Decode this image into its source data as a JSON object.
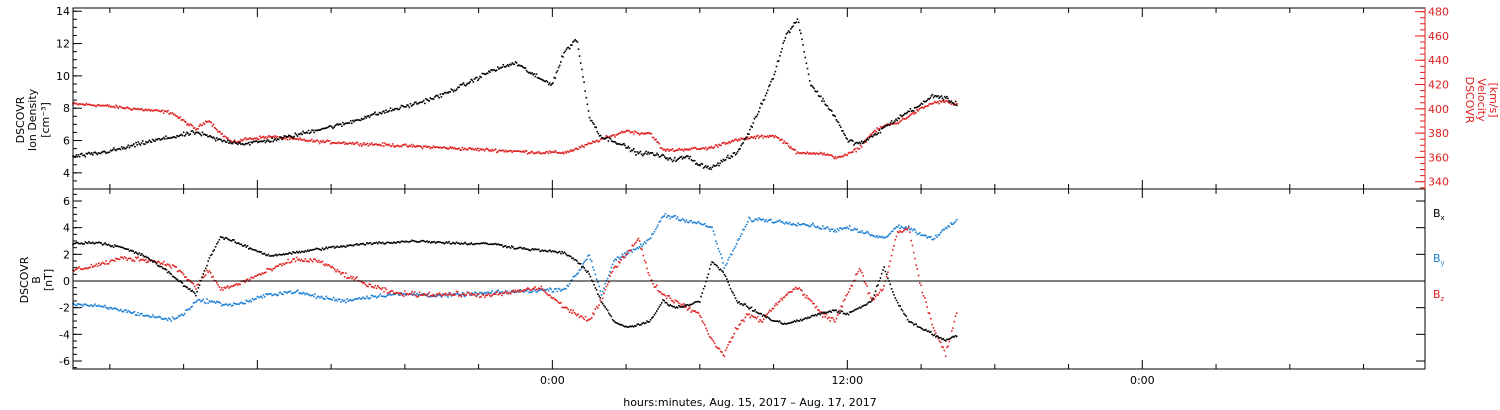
{
  "chart_data": [
    {
      "type": "scatter",
      "panel": "top",
      "ylabel_left": [
        "DSCOVR",
        "Ion Density",
        "[cm⁻³]"
      ],
      "ylabel_right": [
        "DSCOVR",
        "Velocity",
        "[km/s]"
      ],
      "ylim_left": [
        3,
        14.2
      ],
      "ylim_right": [
        334,
        483
      ],
      "left_ticks": [
        "4",
        "6",
        "8",
        "10",
        "12",
        "14"
      ],
      "right_ticks": [
        "340",
        "360",
        "380",
        "400",
        "420",
        "440",
        "460",
        "480"
      ],
      "x_hours_range": [
        -19.5,
        35.5
      ],
      "data_end_hour": 16.5,
      "series": [
        {
          "color": "#000000",
          "axis": "left",
          "x": [
            -19.5,
            -18.5,
            -17.5,
            -16.5,
            -15.5,
            -14.5,
            -13.5,
            -12.5,
            -11.5,
            -10.5,
            -9.5,
            -8.5,
            -7.5,
            -6.5,
            -5.5,
            -4.5,
            -3.5,
            -2.5,
            -1.5,
            -0.5,
            0,
            0.5,
            1,
            1.5,
            2,
            2.5,
            3,
            3.5,
            4,
            4.5,
            5,
            5.5,
            6,
            6.5,
            7,
            7.5,
            8,
            8.5,
            9,
            9.5,
            10,
            10.5,
            11,
            11.5,
            12,
            12.5,
            13,
            13.5,
            14,
            14.5,
            15,
            15.5,
            16,
            16.5
          ],
          "y": [
            5.0,
            5.2,
            5.5,
            5.9,
            6.2,
            6.5,
            6.0,
            5.8,
            6.0,
            6.3,
            6.7,
            7.0,
            7.5,
            7.9,
            8.3,
            8.8,
            9.5,
            10.3,
            10.8,
            9.8,
            9.5,
            11.5,
            12.3,
            7.5,
            6.2,
            6.0,
            5.6,
            5.2,
            5.2,
            5.0,
            4.8,
            5.0,
            4.5,
            4.3,
            4.8,
            5.2,
            6.5,
            8.2,
            10.0,
            12.5,
            13.5,
            9.5,
            8.5,
            7.5,
            6.0,
            5.8,
            6.2,
            6.8,
            7.3,
            7.8,
            8.2,
            8.8,
            8.6,
            8.2
          ]
        },
        {
          "color": "#e02020",
          "axis": "right",
          "x": [
            -19.5,
            -18.5,
            -17.5,
            -16.5,
            -15.5,
            -15,
            -14.5,
            -14,
            -13.5,
            -13,
            -12.5,
            -11.5,
            -10.5,
            -9.5,
            -8.5,
            -7.5,
            -6.5,
            -5.5,
            -4.5,
            -3.5,
            -2.5,
            -1.5,
            -0.5,
            0.5,
            1,
            1.5,
            2,
            2.5,
            3,
            3.5,
            4,
            4.5,
            5,
            5.5,
            6,
            6.5,
            7,
            7.5,
            8,
            8.5,
            9,
            9.5,
            10,
            10.5,
            11,
            11.5,
            12,
            12.5,
            13,
            13.5,
            14,
            14.5,
            15,
            15.5,
            16,
            16.5
          ],
          "y": [
            404,
            403,
            401,
            399,
            397,
            390,
            383,
            391,
            380,
            372,
            375,
            377,
            375,
            373,
            372,
            371,
            370,
            369,
            368,
            367,
            366,
            365,
            364,
            364,
            367,
            371,
            375,
            378,
            382,
            380,
            380,
            366,
            366,
            367,
            367,
            368,
            372,
            374,
            376,
            377,
            378,
            372,
            363,
            364,
            363,
            360,
            362,
            368,
            380,
            386,
            388,
            394,
            400,
            405,
            406,
            403
          ]
        }
      ]
    },
    {
      "type": "scatter",
      "panel": "bottom",
      "ylabel_left": [
        "DSCOVR",
        "B",
        "[nT]"
      ],
      "ylim": [
        -6.6,
        6.9
      ],
      "ticks": [
        "-6",
        "-4",
        "-2",
        "0",
        "2",
        "4",
        "6"
      ],
      "zero_line": true,
      "x_hours_range": [
        -19.5,
        35.5
      ],
      "data_end_hour": 16.5,
      "series": [
        {
          "name": "Bx",
          "color": "#000000",
          "x": [
            -19.5,
            -18.5,
            -17.5,
            -16.5,
            -15.5,
            -15,
            -14.5,
            -14,
            -13.5,
            -13,
            -12.5,
            -11.5,
            -10.5,
            -9.5,
            -8.5,
            -7.5,
            -6.5,
            -5.5,
            -4.5,
            -3.5,
            -2.5,
            -1.5,
            -0.5,
            0.5,
            1,
            1.5,
            2,
            2.5,
            3,
            3.5,
            4,
            4.5,
            5,
            5.5,
            6,
            6.5,
            7,
            7.5,
            8,
            8.5,
            9,
            9.5,
            10,
            10.5,
            11,
            11.5,
            12,
            12.5,
            13,
            13.5,
            14,
            14.5,
            15,
            15.5,
            16,
            16.5
          ],
          "y": [
            2.8,
            2.9,
            2.5,
            1.8,
            0.5,
            -0.3,
            -1.0,
            1.5,
            3.3,
            3.0,
            2.6,
            1.9,
            2.1,
            2.4,
            2.6,
            2.8,
            2.9,
            3.0,
            2.9,
            2.8,
            2.8,
            2.5,
            2.3,
            2.1,
            1.5,
            0.5,
            -1.5,
            -3.0,
            -3.5,
            -3.3,
            -3.0,
            -1.5,
            -2.0,
            -1.8,
            -1.5,
            1.5,
            0.5,
            -1.5,
            -2.0,
            -2.5,
            -3.0,
            -3.2,
            -3.0,
            -2.7,
            -2.4,
            -2.2,
            -2.5,
            -2.0,
            -1.5,
            1.0,
            -1.5,
            -3.0,
            -3.5,
            -4.0,
            -4.5,
            -4.0
          ]
        },
        {
          "name": "By",
          "color": "#1a7fd4",
          "x": [
            -19.5,
            -18.5,
            -17.5,
            -16.5,
            -15.5,
            -15,
            -14.5,
            -14,
            -13.5,
            -13,
            -12.5,
            -11.5,
            -10.5,
            -9.5,
            -8.5,
            -7.5,
            -6.5,
            -5.5,
            -4.5,
            -3.5,
            -2.5,
            -1.5,
            -0.5,
            0.5,
            1,
            1.5,
            2,
            2.5,
            3,
            3.5,
            4,
            4.5,
            5,
            5.5,
            6,
            6.5,
            7,
            7.5,
            8,
            8.5,
            9,
            9.5,
            10,
            10.5,
            11,
            11.5,
            12,
            12.5,
            13,
            13.5,
            14,
            14.5,
            15,
            15.5,
            16,
            16.5
          ],
          "y": [
            -1.7,
            -1.9,
            -2.2,
            -2.6,
            -2.9,
            -2.5,
            -1.5,
            -1.5,
            -1.7,
            -1.8,
            -1.6,
            -1.0,
            -0.8,
            -1.2,
            -1.5,
            -1.2,
            -1.0,
            -1.0,
            -1.1,
            -1.0,
            -0.9,
            -0.8,
            -0.7,
            -0.6,
            0.5,
            2.0,
            -1.0,
            1.5,
            2.0,
            2.5,
            3.2,
            4.9,
            4.8,
            4.5,
            4.3,
            4.0,
            1.0,
            2.8,
            4.6,
            4.6,
            4.5,
            4.4,
            4.3,
            4.2,
            4.0,
            3.8,
            4.0,
            3.7,
            3.5,
            3.2,
            4.1,
            4.0,
            3.5,
            3.2,
            3.9,
            4.6
          ]
        },
        {
          "name": "Bz",
          "color": "#e02020",
          "x": [
            -19.5,
            -18.5,
            -17.5,
            -16.5,
            -15.5,
            -15,
            -14.5,
            -14,
            -13.5,
            -13,
            -12.5,
            -11.5,
            -10.5,
            -9.5,
            -8.5,
            -7.5,
            -6.5,
            -5.5,
            -4.5,
            -3.5,
            -2.5,
            -1.5,
            -0.5,
            0.5,
            1,
            1.5,
            2,
            2.5,
            3,
            3.5,
            4,
            4.5,
            5,
            5.5,
            6,
            6.5,
            7,
            7.5,
            8,
            8.5,
            9,
            9.5,
            10,
            10.5,
            11,
            11.5,
            12,
            12.5,
            13,
            13.5,
            14,
            14.5,
            15,
            15.5,
            16,
            16.5
          ],
          "y": [
            0.8,
            1.2,
            1.7,
            1.6,
            1.2,
            0.5,
            -0.5,
            0.8,
            -0.6,
            -0.4,
            0.0,
            0.8,
            1.6,
            1.5,
            0.5,
            -0.3,
            -0.9,
            -1.0,
            -1.0,
            -1.0,
            -1.1,
            -0.8,
            -0.5,
            -2.0,
            -2.5,
            -3.0,
            -1.5,
            1.0,
            2.0,
            3.2,
            0.0,
            -1.0,
            -1.5,
            -2.0,
            -2.5,
            -4.5,
            -5.5,
            -3.5,
            -2.5,
            -3.0,
            -2.0,
            -1.0,
            -0.5,
            -1.5,
            -2.5,
            -3.0,
            -1.0,
            1.0,
            -1.5,
            -0.5,
            3.5,
            4.0,
            -0.5,
            -3.5,
            -5.5,
            -2.0
          ]
        }
      ],
      "legend": [
        {
          "label": "B",
          "sub": "x",
          "color": "#000000"
        },
        {
          "label": "B",
          "sub": "y",
          "color": "#1a7fd4"
        },
        {
          "label": "B",
          "sub": "z",
          "color": "#e02020"
        }
      ]
    }
  ],
  "x_axis": {
    "tick_labels": [
      "0:00",
      "12:00",
      "0:00"
    ],
    "tick_hours": [
      0,
      12,
      24
    ],
    "xlabel": "hours:minutes, Aug. 15, 2017 – Aug. 17, 2017"
  }
}
